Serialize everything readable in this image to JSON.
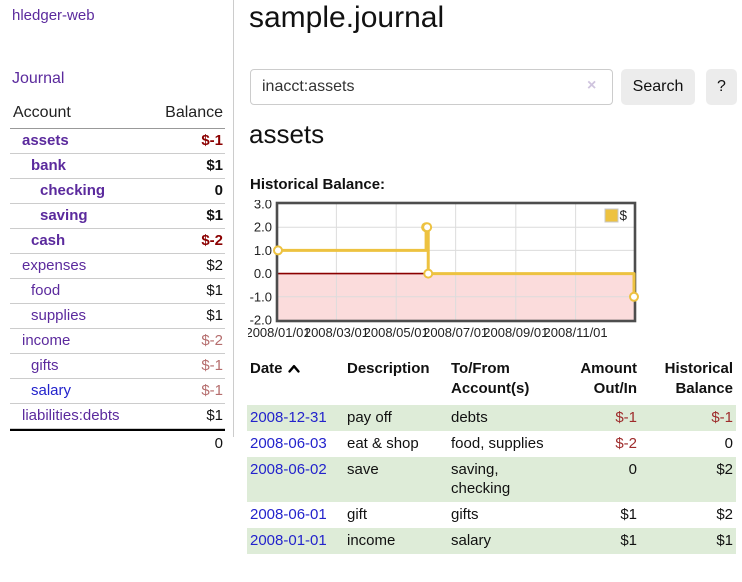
{
  "app": {
    "brand": "hledger-web",
    "nav_journal": "Journal"
  },
  "sidebar": {
    "accounts_header": {
      "account": "Account",
      "balance": "Balance"
    },
    "rows": [
      {
        "name": "assets",
        "indent": 1,
        "bold": true,
        "link_color": "purple",
        "balance": "$-1",
        "balance_style": "neg-strong"
      },
      {
        "name": "bank",
        "indent": 2,
        "bold": true,
        "link_color": "purple",
        "balance": "$1",
        "balance_style": "pos"
      },
      {
        "name": "checking",
        "indent": 3,
        "bold": true,
        "link_color": "purple",
        "balance": "0",
        "balance_style": "pos"
      },
      {
        "name": "saving",
        "indent": 3,
        "bold": true,
        "link_color": "purple",
        "balance": "$1",
        "balance_style": "pos"
      },
      {
        "name": "cash",
        "indent": 2,
        "bold": true,
        "link_color": "purple",
        "balance": "$-2",
        "balance_style": "neg-strong"
      },
      {
        "name": "expenses",
        "indent": 1,
        "bold": false,
        "link_color": "purple",
        "balance": "$2",
        "balance_style": "pos"
      },
      {
        "name": "food",
        "indent": 2,
        "bold": false,
        "link_color": "purple",
        "balance": "$1",
        "balance_style": "pos"
      },
      {
        "name": "supplies",
        "indent": 2,
        "bold": false,
        "link_color": "purple",
        "balance": "$1",
        "balance_style": "pos"
      },
      {
        "name": "income",
        "indent": 1,
        "bold": false,
        "link_color": "purple",
        "balance": "$-2",
        "balance_style": "neg-soft"
      },
      {
        "name": "gifts",
        "indent": 2,
        "bold": false,
        "link_color": "purple",
        "balance": "$-1",
        "balance_style": "neg-soft"
      },
      {
        "name": "salary",
        "indent": 2,
        "bold": false,
        "link_color": "blue",
        "balance": "$-1",
        "balance_style": "neg-soft"
      },
      {
        "name": "liabilities:debts",
        "indent": 1,
        "bold": false,
        "link_color": "purple",
        "balance": "$1",
        "balance_style": "pos"
      }
    ],
    "total": "0"
  },
  "header": {
    "title": "sample.journal"
  },
  "search": {
    "value": "inacct:assets",
    "clear_icon": "×",
    "button": "Search",
    "help_button": "?"
  },
  "account_page": {
    "title": "assets",
    "chart_label": "Historical Balance:"
  },
  "chart_data": {
    "type": "line",
    "title": "Historical Balance:",
    "step": true,
    "ylim": [
      -2.0,
      3.0
    ],
    "yticks": [
      "3.0",
      "2.0",
      "1.0",
      "0.0",
      "-1.0",
      "-2.0"
    ],
    "ytick_values": [
      3.0,
      2.0,
      1.0,
      0.0,
      -1.0,
      -2.0
    ],
    "xticks": [
      {
        "label": "2008/01/01",
        "x": 0.0
      },
      {
        "label": "2008/03/01",
        "x": 0.164
      },
      {
        "label": "2008/05/01",
        "x": 0.332
      },
      {
        "label": "2008/07/01",
        "x": 0.499
      },
      {
        "label": "2008/09/01",
        "x": 0.668
      },
      {
        "label": "2008/11/01",
        "x": 0.836
      }
    ],
    "series": [
      {
        "name": "$",
        "color": "#EDC240",
        "points": [
          {
            "date": "2008-01-01",
            "x": 0.0,
            "y": 1.0
          },
          {
            "date": "2008-06-01",
            "x": 0.416,
            "y": 2.0
          },
          {
            "date": "2008-06-02",
            "x": 0.419,
            "y": 2.0
          },
          {
            "date": "2008-06-03",
            "x": 0.422,
            "y": 0.0
          },
          {
            "date": "2008-12-31",
            "x": 1.0,
            "y": -1.0
          }
        ]
      }
    ],
    "legend": {
      "label": "$",
      "position": "top-right"
    },
    "grid": true,
    "zero_line_color": "#8b0000",
    "negative_region_color": "#fbdcdc",
    "gridline_color": "#dcdcdc",
    "border_color": "#4d4d4d"
  },
  "register": {
    "columns": [
      "Date",
      "Description",
      "To/From Account(s)",
      "Amount Out/In",
      "Historical Balance"
    ],
    "sort_icon": "chevron-up",
    "rows": [
      {
        "date": "2008-12-31",
        "description": "pay off",
        "accounts": "debts",
        "amount": "$-1",
        "amount_neg": true,
        "balance": "$-1",
        "balance_neg": true
      },
      {
        "date": "2008-06-03",
        "description": "eat & shop",
        "accounts": "food, supplies",
        "amount": "$-2",
        "amount_neg": true,
        "balance": "0",
        "balance_neg": false
      },
      {
        "date": "2008-06-02",
        "description": "save",
        "accounts": "saving, checking",
        "amount": "0",
        "amount_neg": false,
        "balance": "$2",
        "balance_neg": false
      },
      {
        "date": "2008-06-01",
        "description": "gift",
        "accounts": "gifts",
        "amount": "$1",
        "amount_neg": false,
        "balance": "$2",
        "balance_neg": false
      },
      {
        "date": "2008-01-01",
        "description": "income",
        "accounts": "salary",
        "amount": "$1",
        "amount_neg": false,
        "balance": "$1",
        "balance_neg": false
      }
    ]
  },
  "colors": {
    "link_purple": "#5b2a9d",
    "link_blue": "#2323cc",
    "negative_strong": "#8b0000",
    "negative_soft": "#b56d6d",
    "table_negative": "#9e2b2b",
    "row_stripe_green": "#deecd8",
    "chart_line_gold": "#EDC240",
    "chart_negative_fill": "#fbdcdc"
  }
}
